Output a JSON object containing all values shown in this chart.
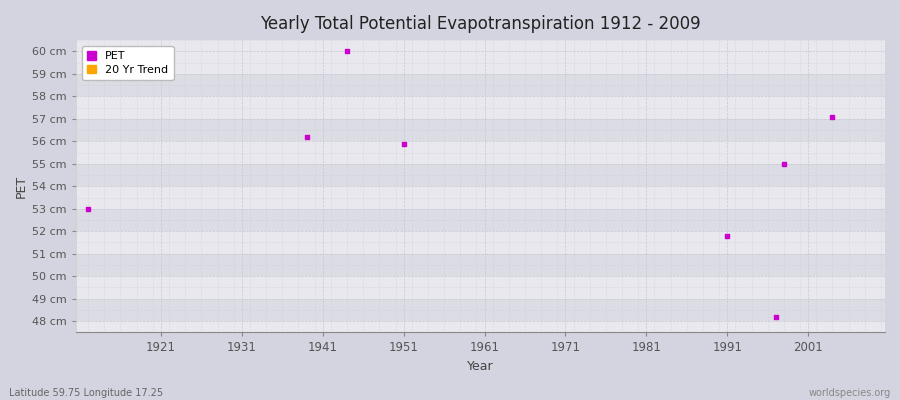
{
  "title": "Yearly Total Potential Evapotranspiration 1912 - 2009",
  "xlabel": "Year",
  "ylabel": "PET",
  "bottom_left_label": "Latitude 59.75 Longitude 17.25",
  "bottom_right_label": "worldspecies.org",
  "pet_color": "#cc00cc",
  "trend_color": "#ffa500",
  "bg_color": "#d4d4e0",
  "plot_bg_color_light": "#e8e8ee",
  "plot_bg_color_dark": "#dcdce4",
  "grid_color": "#c8c8d4",
  "ylim": [
    47.5,
    60.5
  ],
  "yticks": [
    48,
    49,
    50,
    51,
    52,
    53,
    54,
    55,
    56,
    57,
    58,
    59,
    60
  ],
  "xlim": [
    1910.5,
    2010.5
  ],
  "xticks": [
    1921,
    1931,
    1941,
    1951,
    1961,
    1971,
    1981,
    1991,
    2001
  ],
  "pet_years": [
    1912,
    1939,
    1944,
    1951,
    1991,
    1998,
    2004,
    1997
  ],
  "pet_values": [
    53.0,
    56.2,
    60.0,
    55.9,
    51.8,
    55.0,
    57.1,
    48.2
  ],
  "legend_pet_label": "PET",
  "legend_trend_label": "20 Yr Trend"
}
